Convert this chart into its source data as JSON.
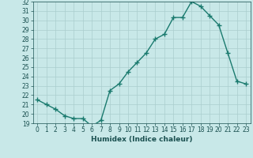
{
  "x": [
    0,
    1,
    2,
    3,
    4,
    5,
    6,
    7,
    8,
    9,
    10,
    11,
    12,
    13,
    14,
    15,
    16,
    17,
    18,
    19,
    20,
    21,
    22,
    23
  ],
  "y": [
    21.5,
    21.0,
    20.5,
    19.8,
    19.5,
    19.5,
    18.7,
    19.3,
    22.5,
    23.2,
    24.5,
    25.5,
    26.5,
    28.0,
    28.5,
    30.3,
    30.3,
    32.0,
    31.5,
    30.5,
    29.5,
    26.5,
    23.5,
    23.2
  ],
  "xlabel": "Humidex (Indice chaleur)",
  "ylim": [
    19,
    32
  ],
  "xlim_min": -0.5,
  "xlim_max": 23.5,
  "yticks": [
    19,
    20,
    21,
    22,
    23,
    24,
    25,
    26,
    27,
    28,
    29,
    30,
    31,
    32
  ],
  "xticks": [
    0,
    1,
    2,
    3,
    4,
    5,
    6,
    7,
    8,
    9,
    10,
    11,
    12,
    13,
    14,
    15,
    16,
    17,
    18,
    19,
    20,
    21,
    22,
    23
  ],
  "line_color": "#1a7a6e",
  "marker": "+",
  "bg_color": "#c8e8e8",
  "grid_color": "#aacece",
  "tick_color": "#1a5050",
  "label_color": "#1a5050",
  "tick_fontsize": 5.5,
  "xlabel_fontsize": 6.5,
  "linewidth": 1.0,
  "markersize": 4,
  "markeredgewidth": 1.0
}
